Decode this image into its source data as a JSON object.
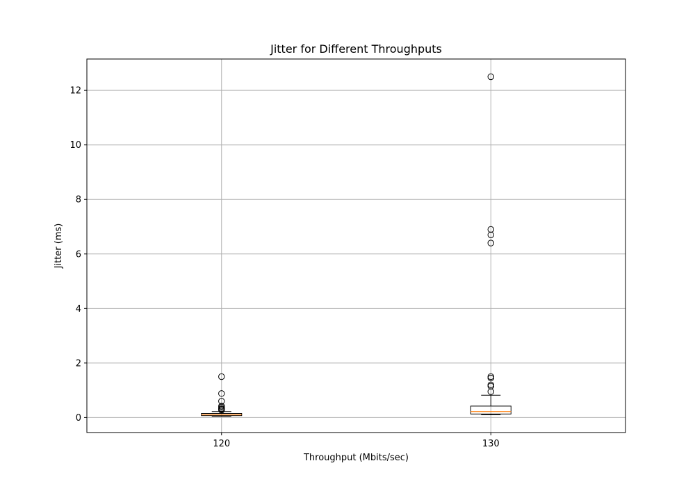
{
  "chart_data": {
    "type": "box",
    "title": "Jitter for Different Throughputs",
    "xlabel": "Throughput (Mbits/sec)",
    "ylabel": "Jitter (ms)",
    "categories": [
      "120",
      "130"
    ],
    "ylim": [
      -0.55,
      13.15
    ],
    "yticks": [
      0,
      2,
      4,
      6,
      8,
      10,
      12
    ],
    "grid": true,
    "colors": {
      "box": "#000000",
      "median": "#ff7f0e",
      "grid": "#b0b0b0",
      "outlier": "#000000"
    },
    "boxes": [
      {
        "category": "120",
        "whisker_low": 0.05,
        "q1": 0.07,
        "median": 0.1,
        "q3": 0.15,
        "whisker_high": 0.22,
        "outliers": [
          1.5,
          0.88,
          0.6,
          0.42,
          0.38,
          0.33,
          0.3,
          0.27
        ]
      },
      {
        "category": "130",
        "whisker_low": 0.1,
        "q1": 0.13,
        "median": 0.22,
        "q3": 0.42,
        "whisker_high": 0.82,
        "outliers": [
          12.5,
          6.9,
          6.7,
          6.4,
          1.5,
          1.45,
          1.2,
          1.15,
          0.95
        ]
      }
    ]
  }
}
